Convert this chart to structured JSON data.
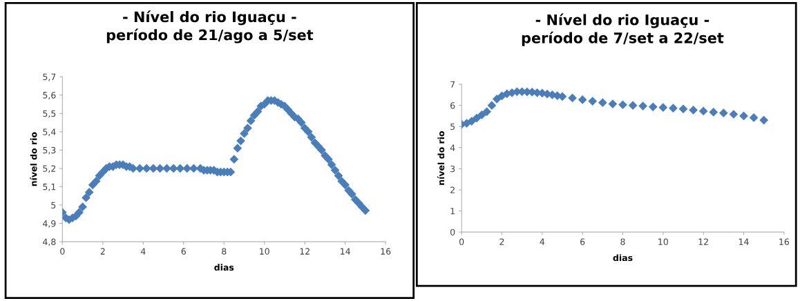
{
  "chart_data": [
    {
      "type": "scatter",
      "title": "- Nível do rio Iguaçu -\nperíodo de 21/ago a 5/set",
      "xlabel": "dias",
      "ylabel": "nível do rio",
      "marker": "diamond",
      "grid": false,
      "legend": false,
      "xlim": [
        0,
        16
      ],
      "xticks": [
        0,
        2,
        4,
        6,
        8,
        10,
        12,
        14,
        16
      ],
      "ylim": [
        4.8,
        5.7
      ],
      "yticks": [
        {
          "value": 4.8,
          "label": "4,8"
        },
        {
          "value": 4.9,
          "label": "4,9"
        },
        {
          "value": 5,
          "label": "5"
        },
        {
          "value": 5.1,
          "label": "5,1"
        },
        {
          "value": 5.2,
          "label": "5,2"
        },
        {
          "value": 5.3,
          "label": "5,3"
        },
        {
          "value": 5.4,
          "label": "5,4"
        },
        {
          "value": 5.5,
          "label": "5,5"
        },
        {
          "value": 5.6,
          "label": "5,6"
        },
        {
          "value": 5.7,
          "label": "5,7"
        }
      ],
      "series": [
        {
          "color": "#4a7ebb",
          "x": [
            0,
            0.17,
            0.33,
            0.5,
            0.67,
            0.83,
            1.0,
            1.17,
            1.33,
            1.5,
            1.67,
            1.83,
            2.0,
            2.17,
            2.33,
            2.5,
            2.67,
            2.83,
            3.0,
            3.17,
            3.33,
            3.5,
            3.83,
            4.17,
            4.5,
            4.83,
            5.17,
            5.5,
            5.83,
            6.17,
            6.5,
            6.83,
            7.0,
            7.17,
            7.33,
            7.5,
            7.67,
            7.83,
            8.0,
            8.17,
            8.33,
            8.5,
            8.67,
            8.83,
            9.0,
            9.17,
            9.33,
            9.5,
            9.67,
            9.83,
            10.0,
            10.17,
            10.33,
            10.5,
            10.67,
            10.83,
            11.0,
            11.17,
            11.33,
            11.5,
            11.67,
            11.83,
            12.0,
            12.17,
            12.33,
            12.5,
            12.67,
            12.83,
            13.0,
            13.17,
            13.33,
            13.5,
            13.67,
            13.83,
            14.0,
            14.17,
            14.33,
            14.5,
            14.67,
            14.83,
            15.0
          ],
          "values": [
            4.96,
            4.93,
            4.92,
            4.93,
            4.94,
            4.96,
            4.99,
            5.04,
            5.07,
            5.11,
            5.13,
            5.16,
            5.18,
            5.2,
            5.21,
            5.21,
            5.22,
            5.22,
            5.22,
            5.21,
            5.21,
            5.2,
            5.2,
            5.2,
            5.2,
            5.2,
            5.2,
            5.2,
            5.2,
            5.2,
            5.2,
            5.2,
            5.19,
            5.19,
            5.19,
            5.19,
            5.18,
            5.18,
            5.18,
            5.18,
            5.18,
            5.25,
            5.31,
            5.35,
            5.39,
            5.42,
            5.46,
            5.49,
            5.51,
            5.54,
            5.55,
            5.57,
            5.57,
            5.57,
            5.56,
            5.55,
            5.54,
            5.52,
            5.5,
            5.48,
            5.47,
            5.45,
            5.42,
            5.4,
            5.37,
            5.34,
            5.32,
            5.3,
            5.27,
            5.25,
            5.22,
            5.19,
            5.16,
            5.13,
            5.11,
            5.08,
            5.06,
            5.03,
            5.01,
            4.99,
            4.97
          ]
        }
      ]
    },
    {
      "type": "scatter",
      "title": "- Nível do rio Iguaçu -\nperíodo de 7/set a 22/set",
      "xlabel": "dias",
      "ylabel": "nível do rio",
      "marker": "diamond",
      "grid": false,
      "legend": false,
      "xlim": [
        0,
        16
      ],
      "xticks": [
        0,
        2,
        4,
        6,
        8,
        10,
        12,
        14,
        16
      ],
      "ylim": [
        0,
        7
      ],
      "yticks": [
        0,
        1,
        2,
        3,
        4,
        5,
        6,
        7
      ],
      "series": [
        {
          "color": "#4a7ebb",
          "x": [
            0,
            0.25,
            0.5,
            0.75,
            1.0,
            1.25,
            1.5,
            1.75,
            2.0,
            2.25,
            2.5,
            2.75,
            3.0,
            3.25,
            3.5,
            3.75,
            4.0,
            4.25,
            4.5,
            4.75,
            5.0,
            5.5,
            6.0,
            6.5,
            7.0,
            7.5,
            8.0,
            8.5,
            9.0,
            9.5,
            10.0,
            10.5,
            11.0,
            11.5,
            12.0,
            12.5,
            13.0,
            13.5,
            14.0,
            14.5,
            15.0
          ],
          "values": [
            5.1,
            5.15,
            5.25,
            5.4,
            5.55,
            5.7,
            6.0,
            6.3,
            6.45,
            6.55,
            6.6,
            6.65,
            6.65,
            6.64,
            6.63,
            6.6,
            6.58,
            6.54,
            6.5,
            6.46,
            6.42,
            6.35,
            6.27,
            6.2,
            6.13,
            6.07,
            6.03,
            6.0,
            5.97,
            5.93,
            5.9,
            5.87,
            5.83,
            5.78,
            5.73,
            5.68,
            5.64,
            5.58,
            5.5,
            5.42,
            5.3
          ]
        }
      ]
    }
  ]
}
